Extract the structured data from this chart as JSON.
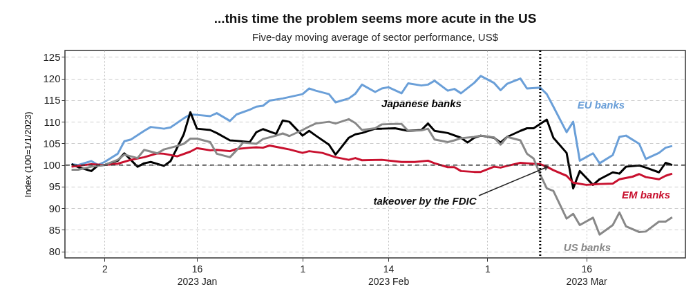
{
  "chart_data": {
    "type": "line",
    "title": "...this time the problem seems more acute in the US",
    "subtitle": "Five-day moving average of sector performance, US$",
    "ylabel": "Index (100=1/1/2023)",
    "xlim": [
      "2022-12-27",
      "2023-03-31"
    ],
    "ylim": [
      78.5,
      126.5
    ],
    "yticks": [
      80,
      85,
      90,
      95,
      100,
      105,
      110,
      115,
      120,
      125
    ],
    "xticks": [
      {
        "value": "2023-01-02",
        "label": "2"
      },
      {
        "value": "2023-01-16",
        "label": "16\n2023 Jan"
      },
      {
        "value": "2023-02-01",
        "label": "1"
      },
      {
        "value": "2023-02-14",
        "label": "14\n2023 Feb"
      },
      {
        "value": "2023-03-01",
        "label": "1"
      },
      {
        "value": "2023-03-16",
        "label": "16\n2023 Mar"
      }
    ],
    "grid": true,
    "legend": false,
    "line_style": "solid",
    "marker": "none",
    "ref_lines": [
      {
        "axis": "y",
        "value": 100,
        "color": "#333333",
        "line_style": "dashed"
      },
      {
        "axis": "x",
        "value": "2023-03-09",
        "color": "#000000",
        "line_style": "dotted"
      }
    ],
    "annotations": [
      {
        "text": "takeover by the FDIC",
        "x": "2023-03-10",
        "y": 99.5
      }
    ],
    "series": [
      {
        "name": "EU banks",
        "color": "#6a9fd8",
        "x": [
          "2022-12-28",
          "2022-12-29",
          "2022-12-31",
          "2023-01-01",
          "2023-01-02",
          "2023-01-04",
          "2023-01-05",
          "2023-01-06",
          "2023-01-08",
          "2023-01-09",
          "2023-01-11",
          "2023-01-12",
          "2023-01-14",
          "2023-01-15",
          "2023-01-16",
          "2023-01-18",
          "2023-01-19",
          "2023-01-21",
          "2023-01-22",
          "2023-01-24",
          "2023-01-25",
          "2023-01-26",
          "2023-01-27",
          "2023-01-29",
          "2023-02-01",
          "2023-02-02",
          "2023-02-03",
          "2023-02-05",
          "2023-02-06",
          "2023-02-08",
          "2023-02-09",
          "2023-02-10",
          "2023-02-12",
          "2023-02-13",
          "2023-02-14",
          "2023-02-16",
          "2023-02-17",
          "2023-02-19",
          "2023-02-20",
          "2023-02-21",
          "2023-02-23",
          "2023-02-24",
          "2023-02-25",
          "2023-02-27",
          "2023-02-28",
          "2023-03-02",
          "2023-03-03",
          "2023-03-04",
          "2023-03-06",
          "2023-03-07",
          "2023-03-09",
          "2023-03-10",
          "2023-03-11",
          "2023-03-13",
          "2023-03-14",
          "2023-03-15",
          "2023-03-17",
          "2023-03-18",
          "2023-03-20",
          "2023-03-21",
          "2023-03-22",
          "2023-03-24",
          "2023-03-25",
          "2023-03-27",
          "2023-03-28",
          "2023-03-29"
        ],
        "values": [
          100.2,
          100,
          100.9,
          100,
          100.7,
          102.6,
          105.5,
          105.9,
          107.9,
          108.8,
          108.4,
          108.7,
          110.8,
          111.7,
          111.6,
          111.3,
          112,
          110.2,
          111.7,
          112.8,
          113.5,
          113.7,
          114.9,
          115.4,
          116.4,
          117.7,
          117.2,
          116.4,
          114.5,
          115.4,
          116.5,
          118.6,
          116.9,
          117.7,
          118,
          116.6,
          118.9,
          118.4,
          118.6,
          119.5,
          117.2,
          117.6,
          116.6,
          119,
          120.6,
          119,
          117.3,
          118.8,
          120,
          117.7,
          117.9,
          116.4,
          113.5,
          107.6,
          110,
          101,
          102.7,
          100.4,
          102.3,
          106.5,
          106.8,
          104.9,
          101.4,
          102.8,
          104,
          104.4
        ]
      },
      {
        "name": "Japanese banks",
        "color": "#000000",
        "x": [
          "2022-12-28",
          "2022-12-29",
          "2022-12-31",
          "2023-01-01",
          "2023-01-02",
          "2023-01-04",
          "2023-01-05",
          "2023-01-07",
          "2023-01-08",
          "2023-01-09",
          "2023-01-11",
          "2023-01-12",
          "2023-01-14",
          "2023-01-15",
          "2023-01-16",
          "2023-01-18",
          "2023-01-19",
          "2023-01-21",
          "2023-01-22",
          "2023-01-24",
          "2023-01-25",
          "2023-01-26",
          "2023-01-28",
          "2023-01-29",
          "2023-01-30",
          "2023-02-01",
          "2023-02-02",
          "2023-02-03",
          "2023-02-05",
          "2023-02-06",
          "2023-02-08",
          "2023-02-09",
          "2023-02-10",
          "2023-02-12",
          "2023-02-13",
          "2023-02-15",
          "2023-02-17",
          "2023-02-19",
          "2023-02-20",
          "2023-02-21",
          "2023-02-23",
          "2023-02-25",
          "2023-02-26",
          "2023-02-27",
          "2023-02-28",
          "2023-03-02",
          "2023-03-03",
          "2023-03-04",
          "2023-03-06",
          "2023-03-07",
          "2023-03-08",
          "2023-03-10",
          "2023-03-11",
          "2023-03-13",
          "2023-03-14",
          "2023-03-15",
          "2023-03-17",
          "2023-03-18",
          "2023-03-20",
          "2023-03-21",
          "2023-03-22",
          "2023-03-24",
          "2023-03-25",
          "2023-03-27",
          "2023-03-28",
          "2023-03-29"
        ],
        "values": [
          100.2,
          99.5,
          98.6,
          99.9,
          100,
          101,
          102.7,
          99.6,
          100.4,
          100.7,
          99.8,
          100.9,
          107.1,
          112.2,
          108.4,
          108.1,
          107.4,
          105.7,
          105.6,
          105.3,
          107.6,
          108.3,
          107.2,
          110.3,
          110,
          106.8,
          107.9,
          106.8,
          104.7,
          102.4,
          106.3,
          107.1,
          107.4,
          108.4,
          108.4,
          108.5,
          107.9,
          108.1,
          109.6,
          107.9,
          107.4,
          106.3,
          105.2,
          106.3,
          106.8,
          106.3,
          105.2,
          106.5,
          107.9,
          108.5,
          108.5,
          110.5,
          106.3,
          102.8,
          94.6,
          98.6,
          95.4,
          96.7,
          98.3,
          98,
          99.6,
          99.9,
          99.4,
          98.3,
          100.5,
          100
        ]
      },
      {
        "name": "EM banks",
        "color": "#c8102e",
        "x": [
          "2022-12-28",
          "2022-12-31",
          "2023-01-02",
          "2023-01-04",
          "2023-01-06",
          "2023-01-08",
          "2023-01-10",
          "2023-01-11",
          "2023-01-13",
          "2023-01-15",
          "2023-01-16",
          "2023-01-18",
          "2023-01-19",
          "2023-01-21",
          "2023-01-22",
          "2023-01-24",
          "2023-01-25",
          "2023-01-26",
          "2023-01-27",
          "2023-01-29",
          "2023-01-30",
          "2023-02-01",
          "2023-02-02",
          "2023-02-04",
          "2023-02-06",
          "2023-02-08",
          "2023-02-09",
          "2023-02-10",
          "2023-02-13",
          "2023-02-16",
          "2023-02-18",
          "2023-02-20",
          "2023-02-21",
          "2023-02-23",
          "2023-02-24",
          "2023-02-25",
          "2023-02-27",
          "2023-02-28",
          "2023-03-02",
          "2023-03-03",
          "2023-03-04",
          "2023-03-06",
          "2023-03-07",
          "2023-03-09",
          "2023-03-10",
          "2023-03-11",
          "2023-03-13",
          "2023-03-14",
          "2023-03-16",
          "2023-03-17",
          "2023-03-18",
          "2023-03-20",
          "2023-03-21",
          "2023-03-23",
          "2023-03-24",
          "2023-03-25",
          "2023-03-27",
          "2023-03-28",
          "2023-03-29"
        ],
        "values": [
          99.6,
          100.2,
          100,
          100.3,
          101.2,
          101.8,
          102.7,
          102.6,
          102,
          103.1,
          103.9,
          103.4,
          103.5,
          103.2,
          103.7,
          104,
          104.1,
          104,
          104.5,
          103.9,
          103.6,
          102.8,
          103.2,
          102.8,
          101.8,
          101.2,
          101.6,
          101.1,
          101.2,
          100.7,
          100.7,
          101,
          100.4,
          99.5,
          99.5,
          98.6,
          98.4,
          98.4,
          99.6,
          99.4,
          99.8,
          100.5,
          100.4,
          100.2,
          99.6,
          98.8,
          97.5,
          95.9,
          95.4,
          95.5,
          95.6,
          95.7,
          96.7,
          97.3,
          97.9,
          97.2,
          96.7,
          97.5,
          98
        ]
      },
      {
        "name": "US banks",
        "color": "#888888",
        "x": [
          "2022-12-28",
          "2022-12-29",
          "2022-12-31",
          "2023-01-02",
          "2023-01-04",
          "2023-01-05",
          "2023-01-07",
          "2023-01-08",
          "2023-01-10",
          "2023-01-11",
          "2023-01-13",
          "2023-01-14",
          "2023-01-15",
          "2023-01-16",
          "2023-01-18",
          "2023-01-19",
          "2023-01-21",
          "2023-01-22",
          "2023-01-23",
          "2023-01-25",
          "2023-01-26",
          "2023-01-28",
          "2023-01-29",
          "2023-01-30",
          "2023-02-01",
          "2023-02-02",
          "2023-02-03",
          "2023-02-05",
          "2023-02-06",
          "2023-02-08",
          "2023-02-09",
          "2023-02-10",
          "2023-02-12",
          "2023-02-13",
          "2023-02-15",
          "2023-02-16",
          "2023-02-17",
          "2023-02-19",
          "2023-02-20",
          "2023-02-21",
          "2023-02-23",
          "2023-02-24",
          "2023-02-25",
          "2023-02-27",
          "2023-02-28",
          "2023-03-02",
          "2023-03-03",
          "2023-03-04",
          "2023-03-06",
          "2023-03-07",
          "2023-03-08",
          "2023-03-09",
          "2023-03-10",
          "2023-03-11",
          "2023-03-13",
          "2023-03-14",
          "2023-03-15",
          "2023-03-17",
          "2023-03-18",
          "2023-03-20",
          "2023-03-21",
          "2023-03-22",
          "2023-03-24",
          "2023-03-25",
          "2023-03-27",
          "2023-03-28",
          "2023-03-29"
        ],
        "values": [
          98.9,
          98.9,
          99.6,
          100,
          101.2,
          102.4,
          101.6,
          103.5,
          102.7,
          103.6,
          104.4,
          104.9,
          106.1,
          106.1,
          105.3,
          102.6,
          101.8,
          103.4,
          105.2,
          104.9,
          106,
          106.8,
          107.3,
          106.7,
          108.1,
          108.9,
          109.6,
          110,
          109.6,
          110.6,
          109.7,
          108.1,
          108.5,
          109.4,
          109.5,
          109.5,
          107.9,
          108,
          108.4,
          105.9,
          105.3,
          105.7,
          106.2,
          106.5,
          106.8,
          106.4,
          104.7,
          106.5,
          105.7,
          102.6,
          101.5,
          97.8,
          94.6,
          94,
          87.6,
          88.7,
          86.1,
          87.8,
          83.9,
          86.1,
          89,
          85.8,
          84.5,
          84.6,
          86.9,
          86.9,
          87.9
        ]
      }
    ]
  }
}
